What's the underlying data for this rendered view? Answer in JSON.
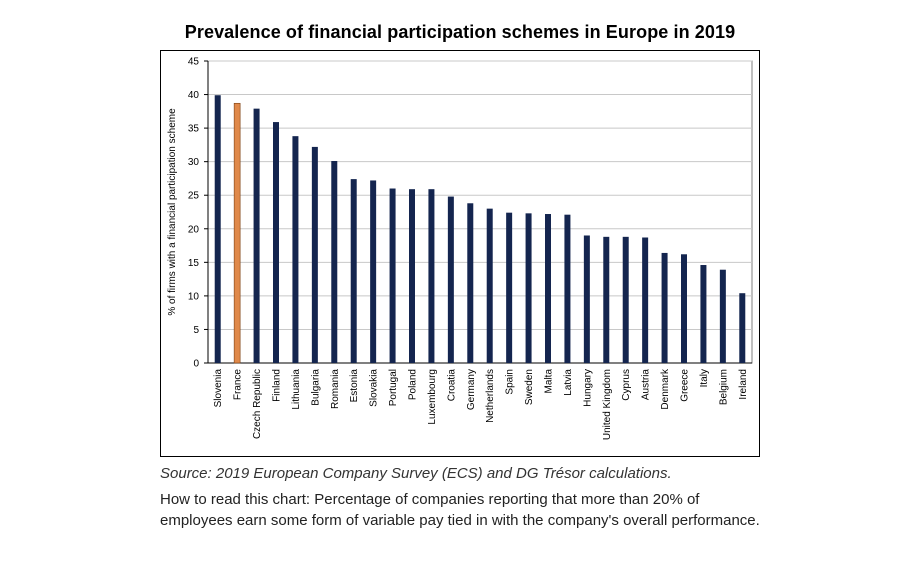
{
  "chart_data": {
    "type": "bar",
    "title": "Prevalence of financial participation schemes in Europe in 2019",
    "ylabel": "% of firms with a financial participation scheme",
    "xlabel": "",
    "ylim": [
      0,
      45
    ],
    "yticks": [
      0,
      5,
      10,
      15,
      20,
      25,
      30,
      35,
      40,
      45
    ],
    "grid": true,
    "legend": "none",
    "colors": {
      "default": "#14254f",
      "highlight": "#e0894a"
    },
    "highlight_category": "France",
    "categories": [
      "Slovenia",
      "France",
      "Czech Republic",
      "Finland",
      "Lithuania",
      "Bulgaria",
      "Romania",
      "Estonia",
      "Slovakia",
      "Portugal",
      "Poland",
      "Luxembourg",
      "Croatia",
      "Germany",
      "Netherlands",
      "Spain",
      "Sweden",
      "Malta",
      "Latvia",
      "Hungary",
      "United Kingdom",
      "Cyprus",
      "Austria",
      "Denmark",
      "Greece",
      "Italy",
      "Belgium",
      "Ireland"
    ],
    "values": [
      39.9,
      38.7,
      37.9,
      35.9,
      33.8,
      32.2,
      30.1,
      27.4,
      27.2,
      26.0,
      25.9,
      25.9,
      24.8,
      23.8,
      23.0,
      22.4,
      22.3,
      22.2,
      22.1,
      19.0,
      18.8,
      18.8,
      18.7,
      16.4,
      16.2,
      14.6,
      13.9,
      10.4
    ]
  },
  "notes": {
    "source": "Source: 2019 European Company Survey (ECS) and DG Trésor calculations.",
    "how_to_read": "How to read this chart: Percentage of companies reporting that more than 20% of employees earn some form of variable pay tied in with the company's overall performance."
  }
}
